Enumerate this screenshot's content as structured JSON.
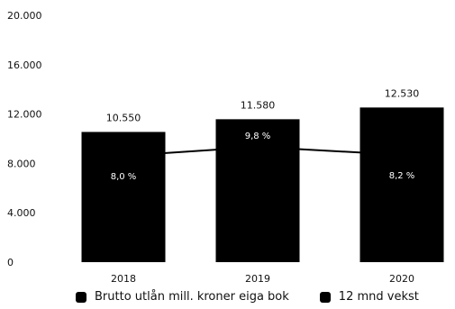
{
  "chart_data": {
    "type": "bar",
    "categories": [
      "2018",
      "2019",
      "2020"
    ],
    "series": [
      {
        "name": "Brutto utlån mill. kroner eiga bok",
        "type": "bar",
        "values": [
          10550,
          11580,
          12530
        ],
        "labels": [
          "10.550",
          "11.580",
          "12.530"
        ],
        "color": "#000000"
      },
      {
        "name": "12 mnd vekst",
        "type": "line",
        "values": [
          8.0,
          9.8,
          8.2
        ],
        "labels": [
          "8,0 %",
          "9,8 %",
          "8,2 %"
        ],
        "color": "#000000"
      }
    ],
    "y_ticks": [
      "0",
      "4.000",
      "8.000",
      "12.000",
      "16.000",
      "20.000"
    ],
    "ylim": [
      0,
      20000
    ],
    "grid": false,
    "legend_position": "bottom"
  }
}
